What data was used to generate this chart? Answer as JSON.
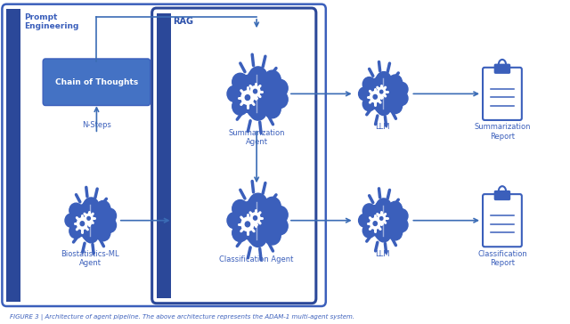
{
  "bg_color": "#ffffff",
  "blue_dark": "#2B4FAA",
  "blue_mid": "#3B5FBB",
  "blue_bar": "#2B4899",
  "blue_box": "#4472C4",
  "arrow_color": "#3B6CB5",
  "caption": "FIGURE 3 | Architecture of agent pipeline. The above architecture represents the ADAM-1 multi-agent system.",
  "label_prompt": "Prompt\nEngineering",
  "label_cot": "Chain of Thoughts",
  "label_nsteps": "N-Steps",
  "label_rag": "RAG",
  "label_sum_agent": "Summarization\nAgent",
  "label_class_agent": "Classification Agent",
  "label_llm_top": "LLM",
  "label_llm_bot": "LLM",
  "label_sum_report": "Summarization\nReport",
  "label_class_report": "Classification\nReport",
  "label_bioml": "Biostatistics-ML\nAgent",
  "figsize": [
    6.4,
    3.64
  ],
  "dpi": 100
}
